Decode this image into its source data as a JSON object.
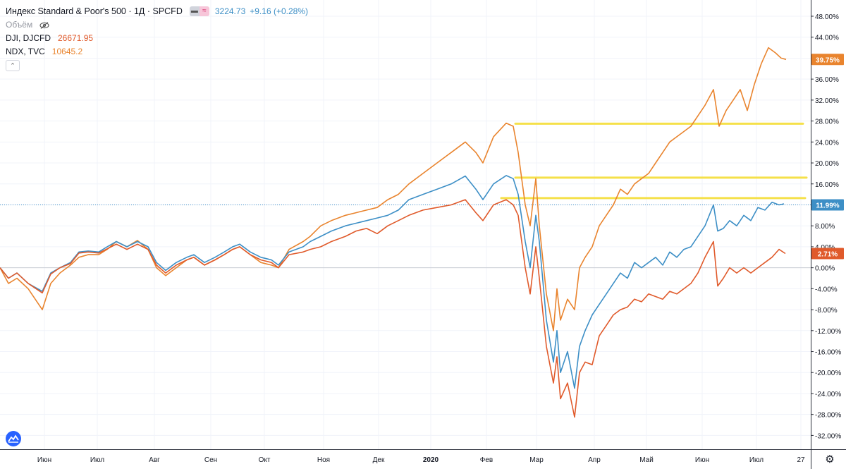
{
  "legend": {
    "main_title": "Индекс Standard & Poor's 500 · 1Д · SPCFD",
    "main_price": "3224.73",
    "main_change": "+9.16 (+0.28%)",
    "volume_label": "Объём",
    "dji_label": "DJI, DJCFD",
    "dji_value": "26671.95",
    "ndx_label": "NDX, TVC",
    "ndx_value": "10645.2"
  },
  "icons": {
    "compare_toggle": "link-icon",
    "compare_wave": "wave-icon",
    "visibility": "eye-off-icon",
    "collapse": "chevron-up-icon",
    "logo": "tradingview-logo-icon",
    "settings": "gear-icon"
  },
  "colors": {
    "spx": "#3d8fc6",
    "dji": "#e05a2b",
    "ndx": "#e9842e",
    "levels": "#f5e04a",
    "last_spx_line": "#3d8fc6"
  },
  "chart_data": {
    "type": "line",
    "title": "",
    "xlabel": "",
    "ylabel": "",
    "y_unit": "%",
    "ylim": [
      -35.5,
      51
    ],
    "yticks": [
      48,
      44,
      40,
      36,
      32,
      28,
      24,
      20,
      16,
      12,
      8,
      4,
      0,
      -4,
      -8,
      -12,
      -16,
      -20,
      -24,
      -28,
      -32
    ],
    "ytick_labels": [
      "48.00%",
      "44.00%",
      "40.00%",
      "36.00%",
      "32.00%",
      "28.00%",
      "24.00%",
      "20.00%",
      "16.00%",
      "12.00%",
      "8.00%",
      "4.00%",
      "0.00%",
      "-4.00%",
      "-8.00%",
      "-12.00%",
      "-16.00%",
      "-20.00%",
      "-24.00%",
      "-28.00%",
      "-32.00%"
    ],
    "xlim": [
      0,
      1147
    ],
    "x_ticks": [
      {
        "label": "Июн",
        "x": 63
      },
      {
        "label": "Июл",
        "x": 138
      },
      {
        "label": "Авг",
        "x": 219
      },
      {
        "label": "Сен",
        "x": 299
      },
      {
        "label": "Окт",
        "x": 375
      },
      {
        "label": "Ноя",
        "x": 459
      },
      {
        "label": "Дек",
        "x": 537
      },
      {
        "label": "2020",
        "x": 611
      },
      {
        "label": "Фев",
        "x": 690
      },
      {
        "label": "Мар",
        "x": 761
      },
      {
        "label": "Апр",
        "x": 843
      },
      {
        "label": "Май",
        "x": 917
      },
      {
        "label": "Июн",
        "x": 996
      },
      {
        "label": "Июл",
        "x": 1073
      },
      {
        "label": "27",
        "x": 1136
      }
    ],
    "grid": true,
    "legend": "top-left",
    "series": [
      {
        "name": "Индекс Standard & Poor's 500",
        "last_label": "11.99%",
        "last_value": 11.99,
        "points": [
          [
            0,
            0
          ],
          [
            12,
            -2
          ],
          [
            24,
            -1
          ],
          [
            40,
            -3
          ],
          [
            60,
            -4.5
          ],
          [
            72,
            -1
          ],
          [
            85,
            0
          ],
          [
            100,
            1
          ],
          [
            112,
            3
          ],
          [
            125,
            3.2
          ],
          [
            140,
            3
          ],
          [
            152,
            4
          ],
          [
            165,
            5
          ],
          [
            180,
            4
          ],
          [
            195,
            5
          ],
          [
            210,
            4
          ],
          [
            222,
            1
          ],
          [
            235,
            -0.5
          ],
          [
            250,
            1
          ],
          [
            265,
            2
          ],
          [
            275,
            2.5
          ],
          [
            290,
            1
          ],
          [
            305,
            2
          ],
          [
            318,
            3
          ],
          [
            330,
            4
          ],
          [
            340,
            4.5
          ],
          [
            355,
            3
          ],
          [
            370,
            2
          ],
          [
            385,
            1.5
          ],
          [
            395,
            0.5
          ],
          [
            410,
            3
          ],
          [
            430,
            4
          ],
          [
            440,
            5
          ],
          [
            455,
            6
          ],
          [
            470,
            7
          ],
          [
            490,
            8
          ],
          [
            505,
            8.5
          ],
          [
            520,
            9
          ],
          [
            535,
            9.5
          ],
          [
            550,
            10
          ],
          [
            565,
            11
          ],
          [
            580,
            13
          ],
          [
            600,
            14
          ],
          [
            620,
            15
          ],
          [
            640,
            16
          ],
          [
            660,
            17.5
          ],
          [
            675,
            15
          ],
          [
            685,
            13
          ],
          [
            700,
            16
          ],
          [
            718,
            17.6
          ],
          [
            728,
            17
          ],
          [
            735,
            14
          ],
          [
            745,
            5
          ],
          [
            752,
            0
          ],
          [
            760,
            10
          ],
          [
            765,
            5
          ],
          [
            775,
            -10
          ],
          [
            785,
            -18
          ],
          [
            790,
            -12
          ],
          [
            795,
            -20
          ],
          [
            805,
            -16
          ],
          [
            815,
            -23
          ],
          [
            822,
            -15
          ],
          [
            830,
            -12
          ],
          [
            840,
            -9
          ],
          [
            850,
            -7
          ],
          [
            860,
            -5
          ],
          [
            870,
            -3
          ],
          [
            880,
            -1
          ],
          [
            890,
            -2
          ],
          [
            900,
            1
          ],
          [
            910,
            0
          ],
          [
            920,
            1
          ],
          [
            930,
            2
          ],
          [
            940,
            0.5
          ],
          [
            950,
            3
          ],
          [
            960,
            2
          ],
          [
            970,
            3.5
          ],
          [
            980,
            4
          ],
          [
            990,
            6
          ],
          [
            1000,
            8
          ],
          [
            1012,
            12
          ],
          [
            1018,
            7
          ],
          [
            1026,
            7.5
          ],
          [
            1035,
            9
          ],
          [
            1045,
            8
          ],
          [
            1055,
            10
          ],
          [
            1065,
            9
          ],
          [
            1075,
            11.5
          ],
          [
            1085,
            11
          ],
          [
            1095,
            12.5
          ],
          [
            1105,
            12
          ],
          [
            1112,
            12.2
          ]
        ]
      },
      {
        "name": "DJI, DJCFD",
        "last_label": "2.71%",
        "last_value": 2.71,
        "points": [
          [
            0,
            0
          ],
          [
            12,
            -2
          ],
          [
            24,
            -1
          ],
          [
            40,
            -3
          ],
          [
            60,
            -4.8
          ],
          [
            72,
            -1.2
          ],
          [
            85,
            0
          ],
          [
            100,
            0.8
          ],
          [
            112,
            2.8
          ],
          [
            125,
            3
          ],
          [
            140,
            2.8
          ],
          [
            152,
            3.6
          ],
          [
            165,
            4.5
          ],
          [
            180,
            3.5
          ],
          [
            195,
            4.5
          ],
          [
            210,
            3.5
          ],
          [
            222,
            0.5
          ],
          [
            235,
            -1
          ],
          [
            250,
            0.5
          ],
          [
            265,
            1.5
          ],
          [
            275,
            2
          ],
          [
            290,
            0.5
          ],
          [
            305,
            1.5
          ],
          [
            318,
            2.5
          ],
          [
            330,
            3.5
          ],
          [
            340,
            4
          ],
          [
            355,
            2.5
          ],
          [
            370,
            1.5
          ],
          [
            385,
            1
          ],
          [
            395,
            0
          ],
          [
            410,
            2.5
          ],
          [
            430,
            3
          ],
          [
            440,
            3.5
          ],
          [
            455,
            4
          ],
          [
            470,
            5
          ],
          [
            490,
            6
          ],
          [
            505,
            7
          ],
          [
            520,
            7.5
          ],
          [
            535,
            6.5
          ],
          [
            550,
            8
          ],
          [
            565,
            9
          ],
          [
            580,
            10
          ],
          [
            600,
            11
          ],
          [
            620,
            11.5
          ],
          [
            640,
            12
          ],
          [
            660,
            13
          ],
          [
            675,
            10.5
          ],
          [
            685,
            9
          ],
          [
            700,
            12
          ],
          [
            718,
            13
          ],
          [
            728,
            12
          ],
          [
            735,
            10
          ],
          [
            745,
            0
          ],
          [
            752,
            -5
          ],
          [
            760,
            4
          ],
          [
            765,
            -2
          ],
          [
            775,
            -15
          ],
          [
            785,
            -22
          ],
          [
            790,
            -17
          ],
          [
            795,
            -25
          ],
          [
            805,
            -22
          ],
          [
            815,
            -28.5
          ],
          [
            822,
            -20
          ],
          [
            830,
            -18
          ],
          [
            840,
            -18.5
          ],
          [
            850,
            -13
          ],
          [
            860,
            -11
          ],
          [
            870,
            -9
          ],
          [
            880,
            -8
          ],
          [
            890,
            -7.5
          ],
          [
            900,
            -6
          ],
          [
            910,
            -6.5
          ],
          [
            920,
            -5
          ],
          [
            930,
            -5.5
          ],
          [
            940,
            -6
          ],
          [
            950,
            -4.5
          ],
          [
            960,
            -5
          ],
          [
            970,
            -4
          ],
          [
            980,
            -3
          ],
          [
            990,
            -1
          ],
          [
            1000,
            2
          ],
          [
            1012,
            5
          ],
          [
            1018,
            -3.5
          ],
          [
            1026,
            -2
          ],
          [
            1035,
            0
          ],
          [
            1045,
            -1
          ],
          [
            1055,
            0
          ],
          [
            1065,
            -1
          ],
          [
            1075,
            0
          ],
          [
            1085,
            1
          ],
          [
            1095,
            2
          ],
          [
            1105,
            3.5
          ],
          [
            1114,
            2.71
          ]
        ]
      },
      {
        "name": "NDX, TVC",
        "last_label": "39.75%",
        "last_value": 39.75,
        "points": [
          [
            0,
            0
          ],
          [
            12,
            -3
          ],
          [
            24,
            -2
          ],
          [
            40,
            -4
          ],
          [
            60,
            -8
          ],
          [
            72,
            -3
          ],
          [
            85,
            -1
          ],
          [
            100,
            0.5
          ],
          [
            112,
            2
          ],
          [
            125,
            2.5
          ],
          [
            140,
            2.5
          ],
          [
            152,
            3.5
          ],
          [
            165,
            5
          ],
          [
            180,
            4
          ],
          [
            195,
            5.2
          ],
          [
            210,
            3.5
          ],
          [
            222,
            0
          ],
          [
            235,
            -1.5
          ],
          [
            250,
            0
          ],
          [
            265,
            1.5
          ],
          [
            275,
            2
          ],
          [
            290,
            0.5
          ],
          [
            305,
            1.5
          ],
          [
            318,
            2.5
          ],
          [
            330,
            3.5
          ],
          [
            340,
            4
          ],
          [
            355,
            2.5
          ],
          [
            370,
            1
          ],
          [
            385,
            0.5
          ],
          [
            395,
            0
          ],
          [
            410,
            3.5
          ],
          [
            430,
            5
          ],
          [
            440,
            6
          ],
          [
            455,
            8
          ],
          [
            470,
            9
          ],
          [
            490,
            10
          ],
          [
            505,
            10.5
          ],
          [
            520,
            11
          ],
          [
            535,
            11.5
          ],
          [
            550,
            13
          ],
          [
            565,
            14
          ],
          [
            580,
            16
          ],
          [
            600,
            18
          ],
          [
            620,
            20
          ],
          [
            640,
            22
          ],
          [
            660,
            24
          ],
          [
            675,
            22
          ],
          [
            685,
            20
          ],
          [
            700,
            25
          ],
          [
            718,
            27.6
          ],
          [
            728,
            27
          ],
          [
            735,
            22
          ],
          [
            745,
            12
          ],
          [
            752,
            8
          ],
          [
            760,
            17
          ],
          [
            765,
            8
          ],
          [
            775,
            -5
          ],
          [
            785,
            -12
          ],
          [
            790,
            -4
          ],
          [
            795,
            -10
          ],
          [
            805,
            -6
          ],
          [
            815,
            -8
          ],
          [
            822,
            0
          ],
          [
            830,
            2
          ],
          [
            840,
            4
          ],
          [
            850,
            8
          ],
          [
            860,
            10
          ],
          [
            870,
            12
          ],
          [
            880,
            15
          ],
          [
            890,
            14
          ],
          [
            900,
            16
          ],
          [
            910,
            17
          ],
          [
            920,
            18
          ],
          [
            930,
            20
          ],
          [
            940,
            22
          ],
          [
            950,
            24
          ],
          [
            960,
            25
          ],
          [
            970,
            26
          ],
          [
            980,
            27
          ],
          [
            990,
            29
          ],
          [
            1000,
            31
          ],
          [
            1012,
            34
          ],
          [
            1020,
            27
          ],
          [
            1030,
            30
          ],
          [
            1040,
            32
          ],
          [
            1050,
            34
          ],
          [
            1060,
            30
          ],
          [
            1070,
            35
          ],
          [
            1080,
            39
          ],
          [
            1090,
            42
          ],
          [
            1100,
            41
          ],
          [
            1108,
            40
          ],
          [
            1115,
            39.75
          ]
        ]
      }
    ],
    "horizontal_levels": [
      {
        "y": 27.5,
        "x_start": 731,
        "x_end": 1139
      },
      {
        "y": 17.2,
        "x_start": 731,
        "x_end": 1144
      },
      {
        "y": 13.3,
        "x_start": 711,
        "x_end": 1142
      }
    ],
    "dotted_line_y": 11.99
  }
}
